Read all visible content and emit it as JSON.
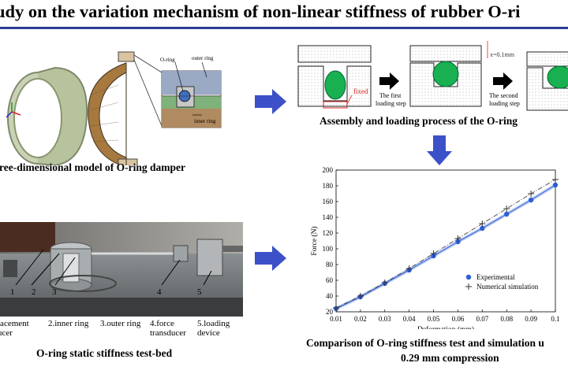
{
  "title": "udy on the variation mechanism of non-linear stiffness of rubber O-ri",
  "colors": {
    "accent": "#2b3a9a",
    "arrow": "#3c50c8",
    "oring_green": "#18b050",
    "exp_blue": "#2f5fd6",
    "sim_gray": "#555555"
  },
  "model": {
    "caption": "ree-dimensional model of O-ring damper",
    "labels": {
      "oring": "O-ring",
      "outer": "outer ring",
      "inner": "inner ring"
    }
  },
  "assembly": {
    "caption": "Assembly and loading process of the O-ring",
    "fixed_label": "fixed",
    "step1": "The first loading step",
    "step1_a": "The first",
    "step1_b": "loading step",
    "step2_a": "The second",
    "step2_b": "loading step",
    "disp_label": "x=0.1mm"
  },
  "testbed": {
    "caption": "O-ring static stiffness test-bed",
    "numbers": [
      "1",
      "2",
      "3",
      "4",
      "5"
    ],
    "legend_lines": [
      [
        "lacement",
        "ucer"
      ],
      [
        "2.inner ring"
      ],
      [
        "3.outer ring"
      ],
      [
        "4.force",
        "transducer"
      ],
      [
        "5.loading",
        "device"
      ]
    ]
  },
  "comparison": {
    "caption_line1": "Comparison of O-ring stiffness test and simulation u",
    "caption_line2": "0.29 mm compression"
  },
  "chart_data": {
    "type": "scatter",
    "title": "",
    "xlabel": "Deformation (mm)",
    "ylabel": "Force (N)",
    "xlim": [
      0.01,
      0.1
    ],
    "ylim": [
      20,
      200
    ],
    "xticks": [
      "0.01",
      "0.02",
      "0.03",
      "0.04",
      "0.05",
      "0.06",
      "0.07",
      "0.08",
      "0.09",
      "0.1"
    ],
    "yticks": [
      "20",
      "40",
      "60",
      "80",
      "100",
      "120",
      "140",
      "160",
      "180",
      "200"
    ],
    "legend_position": "bottom-right",
    "series": [
      {
        "name": "Experimental",
        "marker": "circle",
        "x": [
          0.01,
          0.02,
          0.03,
          0.04,
          0.05,
          0.06,
          0.07,
          0.08,
          0.09,
          0.1
        ],
        "y": [
          24,
          39,
          56,
          73,
          91,
          109,
          126,
          144,
          162,
          181
        ]
      },
      {
        "name": "Numerical simulation",
        "marker": "plus",
        "x": [
          0.01,
          0.02,
          0.03,
          0.04,
          0.05,
          0.06,
          0.07,
          0.08,
          0.09,
          0.1
        ],
        "y": [
          25,
          40,
          57,
          75,
          94,
          113,
          132,
          151,
          170,
          188
        ]
      }
    ]
  }
}
